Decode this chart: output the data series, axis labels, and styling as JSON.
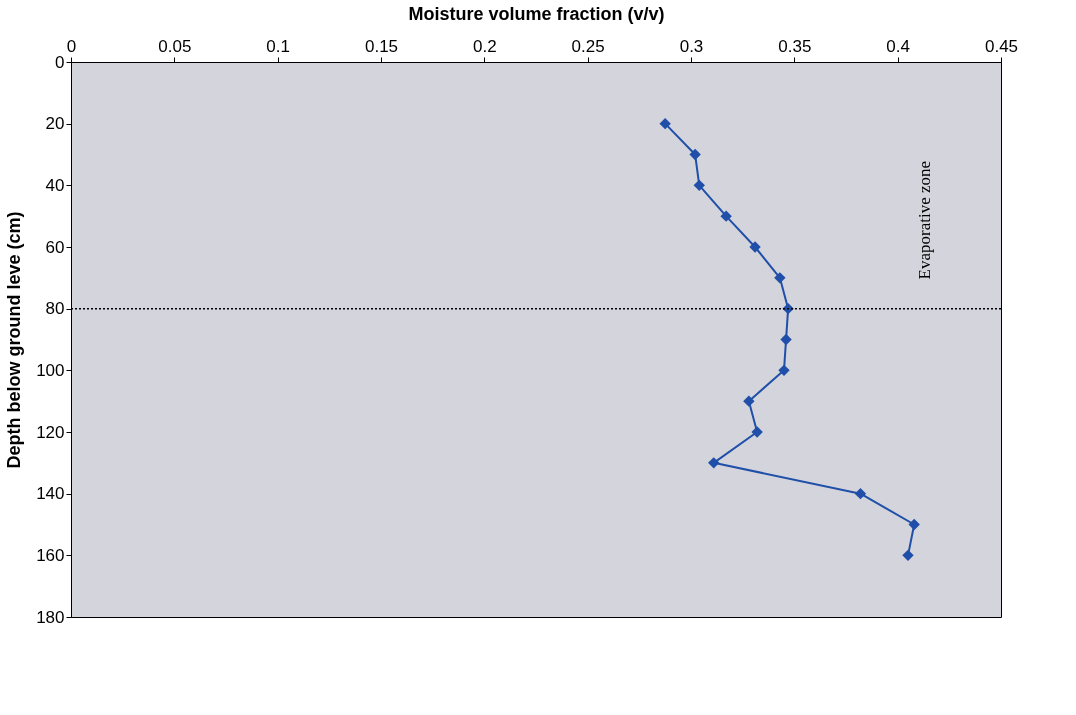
{
  "chart_data": {
    "type": "line",
    "xlabel": "Moisture volume fraction (v/v)",
    "ylabel": "Depth below ground leve (cm)",
    "xlim": [
      0,
      0.45
    ],
    "xticks": [
      0,
      0.05,
      0.1,
      0.15,
      0.2,
      0.25,
      0.3,
      0.35,
      0.4,
      0.45
    ],
    "ylim": [
      180,
      0
    ],
    "yticks": [
      0,
      20,
      40,
      60,
      80,
      100,
      120,
      140,
      160,
      180
    ],
    "series": [
      {
        "color": "#1f4fa8",
        "x": [
          0.2875,
          0.302,
          0.304,
          0.317,
          0.331,
          0.343,
          0.347,
          0.346,
          0.345,
          0.328,
          0.332,
          0.311,
          0.382,
          0.408,
          0.405
        ],
        "values": [
          20,
          30,
          40,
          50,
          60,
          70,
          80,
          90,
          100,
          110,
          120,
          130,
          140,
          150,
          160
        ]
      }
    ],
    "ref_lines": [
      {
        "axis": "y",
        "value": 80,
        "color": "#000000",
        "line_style": "dotted"
      }
    ],
    "annotations": [
      "Evaporative zone"
    ],
    "marker": "diamond",
    "line_style": "solid",
    "grid": false
  }
}
